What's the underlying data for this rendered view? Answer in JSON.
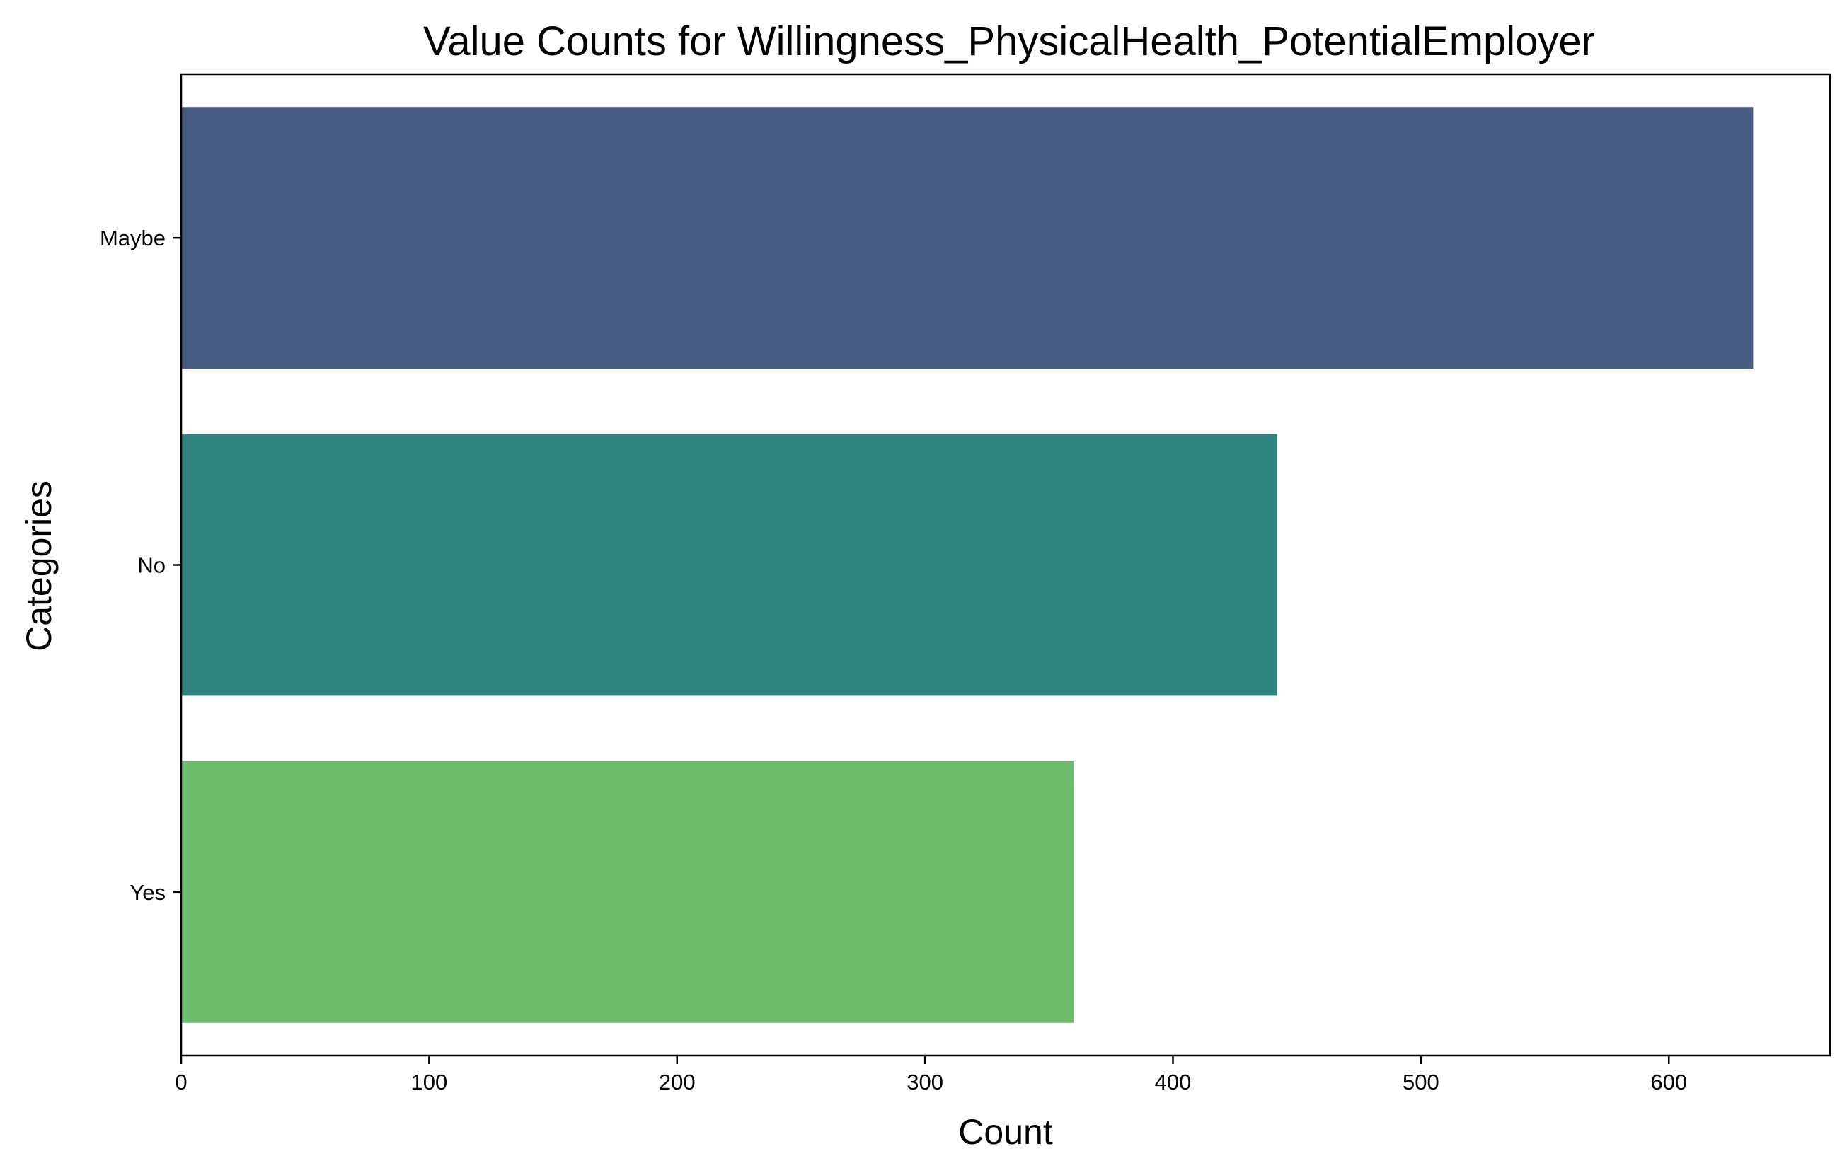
{
  "chart_data": {
    "type": "bar",
    "orientation": "horizontal",
    "title": "Value Counts for Willingness_PhysicalHealth_PotentialEmployer",
    "xlabel": "Count",
    "ylabel": "Categories",
    "categories": [
      "Maybe",
      "No",
      "Yes"
    ],
    "values": [
      634,
      442,
      360
    ],
    "colors": [
      "#465a81",
      "#2e837d",
      "#6bbb6b"
    ],
    "xlim": [
      0,
      665
    ],
    "xticks": [
      0,
      100,
      200,
      300,
      400,
      500,
      600
    ],
    "grid": false,
    "legend": false
  }
}
